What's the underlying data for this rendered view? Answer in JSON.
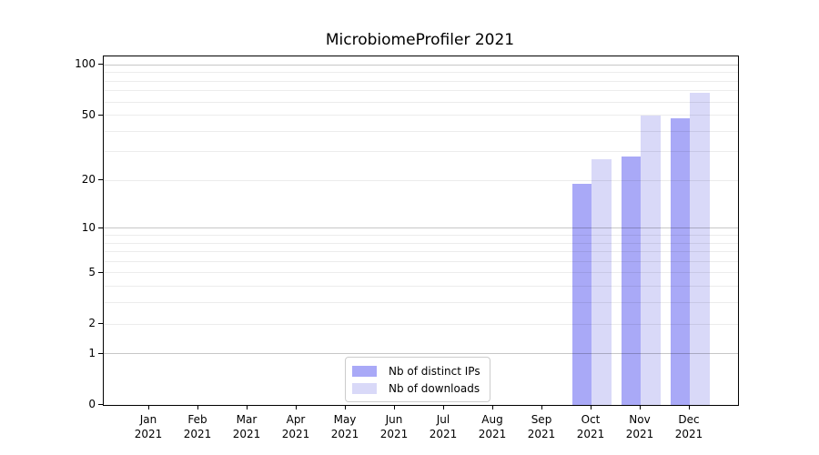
{
  "chart_data": {
    "type": "bar",
    "title": "MicrobiomeProfiler 2021",
    "categories": [
      "Jan",
      "Feb",
      "Mar",
      "Apr",
      "May",
      "Jun",
      "Jul",
      "Aug",
      "Sep",
      "Oct",
      "Nov",
      "Dec"
    ],
    "category_year": "2021",
    "series": [
      {
        "name": "Nb of distinct IPs",
        "color": "#a9a9f7",
        "values": [
          null,
          null,
          null,
          null,
          null,
          null,
          null,
          null,
          null,
          19,
          28,
          48
        ]
      },
      {
        "name": "Nb of downloads",
        "color": "#d9d9f8",
        "values": [
          null,
          null,
          null,
          null,
          null,
          null,
          null,
          null,
          null,
          27,
          50,
          68
        ]
      }
    ],
    "xlabel": "",
    "ylabel": "",
    "yscale": "log1p",
    "ylim": [
      0,
      111
    ],
    "yticks": [
      {
        "value": 0,
        "label": "0"
      },
      {
        "value": 1,
        "label": "1"
      },
      {
        "value": 2,
        "label": "2"
      },
      {
        "value": 5,
        "label": "5"
      },
      {
        "value": 10,
        "label": "10"
      },
      {
        "value": 20,
        "label": "20"
      },
      {
        "value": 50,
        "label": "50"
      },
      {
        "value": 100,
        "label": "100"
      }
    ],
    "major_gridlines": [
      1,
      10,
      100
    ],
    "minor_gridlines": [
      2,
      3,
      4,
      5,
      6,
      7,
      8,
      9,
      20,
      30,
      40,
      50,
      60,
      70,
      80,
      90
    ],
    "grid": true,
    "legend_position": "lower-center-inside"
  },
  "legend": {
    "items": [
      {
        "label": "Nb of distinct IPs",
        "color": "#a9a9f7"
      },
      {
        "label": "Nb of downloads",
        "color": "#d9d9f8"
      }
    ]
  }
}
